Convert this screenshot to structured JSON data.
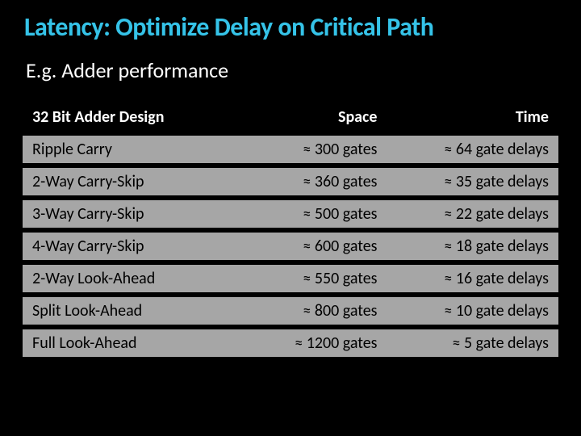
{
  "title": "Latency: Optimize Delay on Critical Path",
  "subtitle": "E.g. Adder performance",
  "table": {
    "columns": [
      "32 Bit Adder Design",
      "Space",
      "Time"
    ],
    "rows": [
      [
        "Ripple Carry",
        "≈ 300 gates",
        "≈ 64 gate delays"
      ],
      [
        "2-Way Carry-Skip",
        "≈ 360 gates",
        "≈ 35 gate delays"
      ],
      [
        "3-Way Carry-Skip",
        "≈ 500 gates",
        "≈ 22 gate delays"
      ],
      [
        "4-Way Carry-Skip",
        "≈ 600 gates",
        "≈ 18 gate delays"
      ],
      [
        "2-Way Look-Ahead",
        "≈ 550 gates",
        "≈ 16 gate delays"
      ],
      [
        "Split Look-Ahead",
        "≈ 800 gates",
        "≈ 10 gate delays"
      ],
      [
        "Full Look-Ahead",
        "≈ 1200 gates",
        "≈ 5 gate delays"
      ]
    ],
    "header_bg": "#000000",
    "header_color": "#ffffff",
    "row_bg": "#a6a6a6",
    "row_color": "#000000",
    "font_size_header": 20,
    "font_size_cell": 20,
    "col_align": [
      "left",
      "right",
      "right"
    ]
  },
  "colors": {
    "background": "#000000",
    "title": "#35c3e8",
    "subtitle": "#ffffff"
  },
  "type": "table"
}
